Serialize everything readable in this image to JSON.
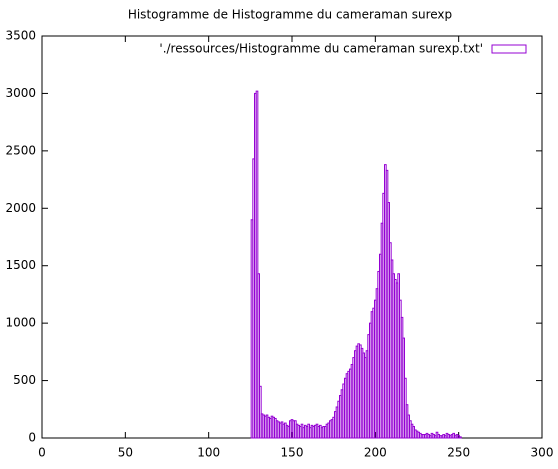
{
  "chart_data": {
    "type": "histogram",
    "title": "Histogramme de Histogramme du cameraman surexp",
    "series": [
      {
        "name": "'./ressources/Histogramme du cameraman surexp.txt'",
        "color": "#9400d3",
        "x": [
          125,
          126,
          127,
          128,
          129,
          130,
          131,
          132,
          133,
          134,
          135,
          136,
          137,
          138,
          139,
          140,
          141,
          142,
          143,
          144,
          145,
          146,
          147,
          148,
          149,
          150,
          151,
          152,
          153,
          154,
          155,
          156,
          157,
          158,
          159,
          160,
          161,
          162,
          163,
          164,
          165,
          166,
          167,
          168,
          169,
          170,
          171,
          172,
          173,
          174,
          175,
          176,
          177,
          178,
          179,
          180,
          181,
          182,
          183,
          184,
          185,
          186,
          187,
          188,
          189,
          190,
          191,
          192,
          193,
          194,
          195,
          196,
          197,
          198,
          199,
          200,
          201,
          202,
          203,
          204,
          205,
          206,
          207,
          208,
          209,
          210,
          211,
          212,
          213,
          214,
          215,
          216,
          217,
          218,
          219,
          220,
          221,
          222,
          223,
          224,
          225,
          226,
          227,
          228,
          229,
          230,
          231,
          232,
          233,
          234,
          235,
          236,
          237,
          238,
          239,
          240,
          241,
          242,
          243,
          244,
          245,
          246,
          247,
          248,
          249,
          250,
          251,
          252
        ],
        "values": [
          0,
          1900,
          2430,
          3000,
          3020,
          1430,
          450,
          210,
          200,
          190,
          200,
          180,
          170,
          190,
          180,
          170,
          150,
          140,
          130,
          140,
          120,
          130,
          110,
          100,
          150,
          160,
          150,
          150,
          120,
          110,
          100,
          120,
          90,
          110,
          100,
          120,
          90,
          110,
          100,
          110,
          120,
          100,
          110,
          90,
          100,
          100,
          120,
          130,
          150,
          160,
          180,
          230,
          270,
          320,
          370,
          420,
          470,
          520,
          560,
          580,
          600,
          640,
          700,
          760,
          800,
          820,
          810,
          780,
          740,
          700,
          760,
          900,
          1000,
          1100,
          1130,
          1200,
          1300,
          1450,
          1600,
          1870,
          2130,
          2380,
          2330,
          2050,
          1700,
          1550,
          1430,
          1380,
          1350,
          1430,
          1200,
          1050,
          870,
          520,
          290,
          200,
          150,
          120,
          100,
          70,
          60,
          50,
          40,
          30,
          30,
          30,
          40,
          30,
          20,
          40,
          30,
          20,
          50,
          30,
          20,
          20,
          30,
          20,
          40,
          30,
          20,
          30,
          40,
          20,
          30,
          20,
          10,
          0
        ]
      }
    ],
    "xlim": [
      0,
      300
    ],
    "xticks": [
      0,
      50,
      100,
      150,
      200,
      250,
      300
    ],
    "ylim": [
      0,
      3500
    ],
    "yticks": [
      0,
      500,
      1000,
      1500,
      2000,
      2500,
      3000,
      3500
    ],
    "legend": "upper right"
  }
}
